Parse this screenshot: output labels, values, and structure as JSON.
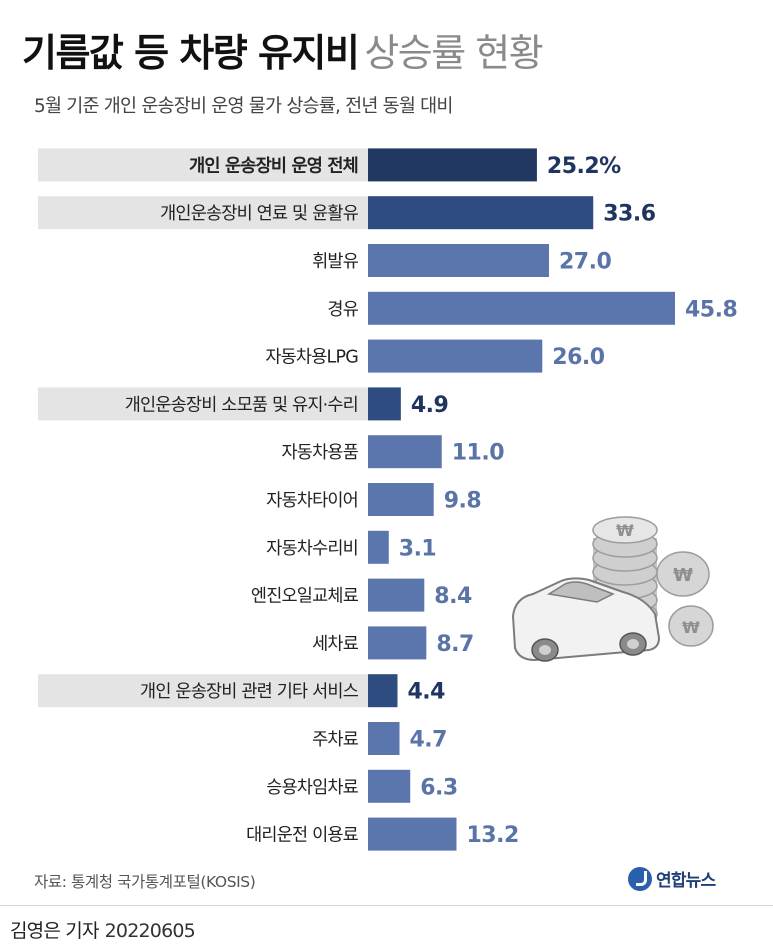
{
  "title": "기름값 등 차량 유지비",
  "title_light": "상승률 현황",
  "subtitle": "5월 기준 개인 운송장비 운영 물가 상승률, 전년 동월 대비",
  "colors": {
    "main_bar": "#213863",
    "group_bar": "#2f4c80",
    "sub_bar": "#5b76ad",
    "main_value": "#1f3560",
    "sub_value": "#5a74a8",
    "highlight_band": "#e4e4e4"
  },
  "chart_data": {
    "type": "bar",
    "orientation": "horizontal",
    "unit": "%",
    "categories": [
      "개인 운송장비 운영 전체",
      "개인운송장비 연료 및 윤활유",
      "휘발유",
      "경유",
      "자동차용LPG",
      "개인운송장비 소모품 및 유지·수리",
      "자동차용품",
      "자동차타이어",
      "자동차수리비",
      "엔진오일교체료",
      "세차료",
      "개인 운송장비 관련 기타 서비스",
      "주차료",
      "승용차임차료",
      "대리운전 이용료"
    ],
    "values": [
      25.2,
      33.6,
      27.0,
      45.8,
      26.0,
      4.9,
      11.0,
      9.8,
      3.1,
      8.4,
      8.7,
      4.4,
      4.7,
      6.3,
      13.2
    ],
    "value_labels": [
      "25.2%",
      "33.6",
      "27.0",
      "45.8",
      "26.0",
      "4.9",
      "11.0",
      "9.8",
      "3.1",
      "8.4",
      "8.7",
      "4.4",
      "4.7",
      "6.3",
      "13.2"
    ],
    "levels": [
      "total",
      "group",
      "item",
      "item",
      "item",
      "group",
      "item",
      "item",
      "item",
      "item",
      "item",
      "group",
      "item",
      "item",
      "item"
    ],
    "xlim": [
      0,
      45.8
    ]
  },
  "source": "자료: 통계청 국가통계포털(KOSIS)",
  "logo_text": "연합뉴스",
  "byline": {
    "reporter": "김영은 기자",
    "date": "20220605"
  },
  "illustration": {
    "icons": [
      "car-icon",
      "won-coin-stack-icon"
    ]
  }
}
